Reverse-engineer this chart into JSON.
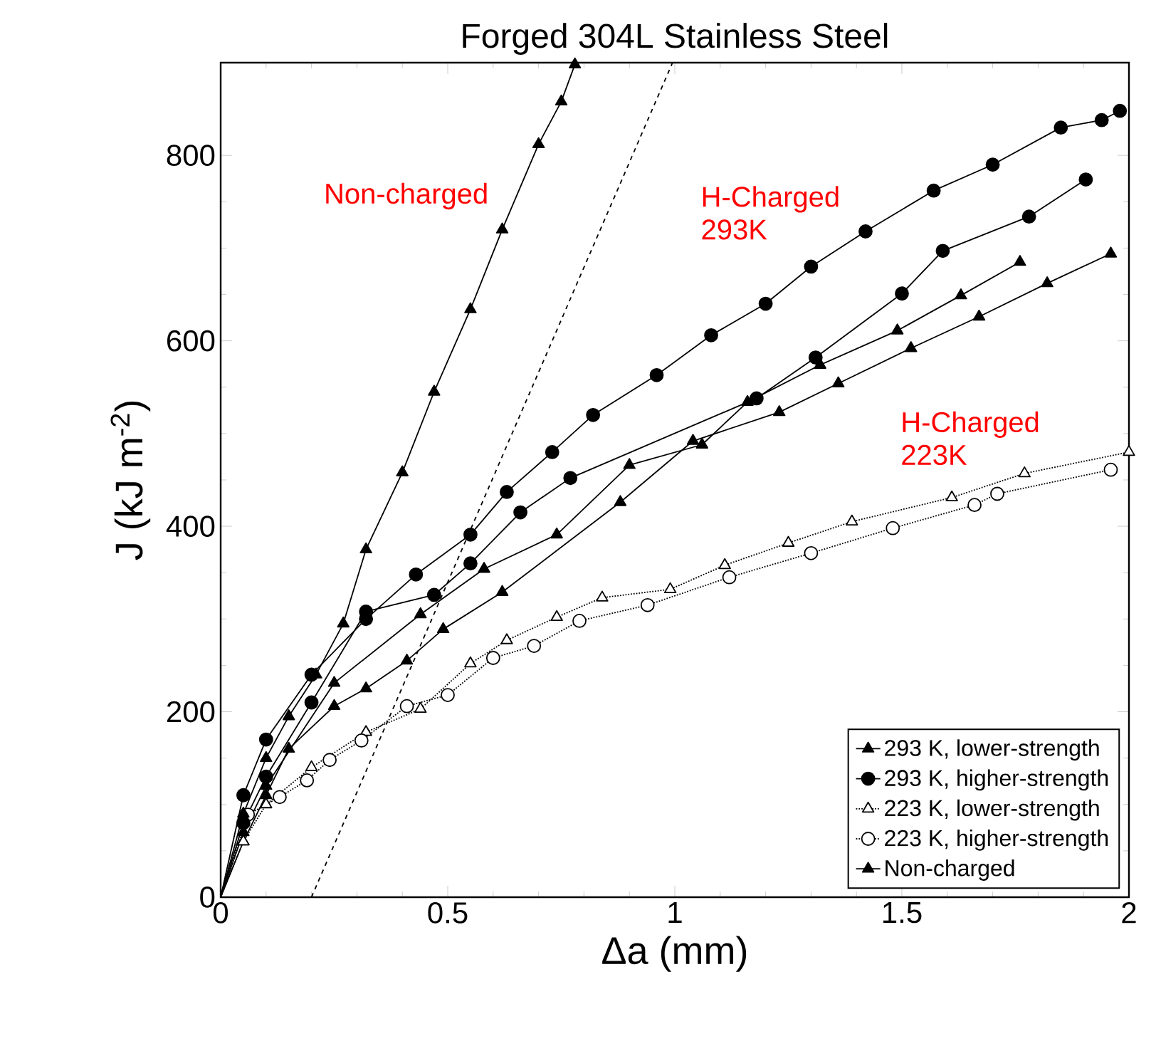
{
  "chart_data": {
    "type": "line",
    "title": "Forged 304L Stainless Steel",
    "xlabel": "Δa (mm)",
    "ylabel": "J (kJ m$^{-2}$)",
    "xlim": [
      0,
      2
    ],
    "ylim": [
      0,
      900
    ],
    "xticks": [
      0,
      0.5,
      1,
      1.5,
      2
    ],
    "yticks": [
      0,
      200,
      400,
      600,
      800
    ],
    "legend": "bottom right",
    "grid": false,
    "annotations": [
      "Non-charged",
      "H-Charged 293K",
      "H-Charged 223K"
    ],
    "series": [
      {
        "name": "293 K, lower-strength",
        "color": "#000000",
        "marker": "triangle",
        "line_style": "solid",
        "x": [
          0,
          0.05,
          0.1,
          0.15,
          0.25,
          0.32,
          0.41,
          0.49,
          0.62,
          0.88,
          1.04,
          1.23,
          1.36,
          1.52,
          1.67,
          1.82,
          1.96
        ],
        "values": [
          0,
          60,
          110,
          160,
          206,
          225,
          255,
          289,
          329,
          426,
          492,
          523,
          554,
          592,
          626,
          662,
          694
        ]
      },
      {
        "name": "293 K, higher-strength",
        "color": "#000000",
        "marker": "circle",
        "line_style": "solid",
        "x": [
          0,
          0.05,
          0.1,
          0.2,
          0.32,
          0.43,
          0.55,
          0.63,
          0.73,
          0.82,
          0.96,
          1.08,
          1.2,
          1.3,
          1.42,
          1.57,
          1.7,
          1.85,
          1.94,
          1.98
        ],
        "values": [
          0,
          110,
          170,
          240,
          300,
          348,
          391,
          437,
          480,
          520,
          563,
          606,
          640,
          680,
          718,
          762,
          790,
          830,
          838,
          848
        ]
      },
      {
        "name": "223 K, lower-strength",
        "color": "#000000",
        "marker": "triangle",
        "line_style": "dotted",
        "x": [
          0,
          0.05,
          0.1,
          0.2,
          0.32,
          0.44,
          0.55,
          0.63,
          0.74,
          0.84,
          0.99,
          1.11,
          1.25,
          1.39,
          1.61,
          1.77,
          2.0
        ],
        "values": [
          0,
          60,
          100,
          140,
          178,
          203,
          252,
          277,
          302,
          323,
          332,
          358,
          382,
          405,
          431,
          457,
          480
        ]
      },
      {
        "name": "223 K, higher-strength",
        "color": "#000000",
        "marker": "circle",
        "line_style": "dotted",
        "x": [
          0,
          0.06,
          0.13,
          0.19,
          0.24,
          0.31,
          0.41,
          0.5,
          0.6,
          0.69,
          0.79,
          0.94,
          1.12,
          1.3,
          1.48,
          1.66,
          1.71,
          1.96
        ],
        "values": [
          0,
          89,
          108,
          126,
          148,
          169,
          206,
          218,
          258,
          271,
          298,
          315,
          345,
          371,
          398,
          423,
          435,
          461
        ]
      },
      {
        "name": "Non-charged",
        "color": "#000000",
        "marker": "triangle",
        "line_style": "solid",
        "x": [
          0,
          0.05,
          0.1,
          0.15,
          0.21,
          0.27,
          0.32,
          0.4,
          0.47,
          0.55,
          0.62,
          0.7,
          0.75,
          0.78
        ],
        "values": [
          0,
          90,
          150,
          195,
          240,
          295,
          375,
          458,
          545,
          634,
          720,
          812,
          858,
          898
        ]
      },
      {
        "color": "#000000",
        "marker": "triangle",
        "line_style": "solid",
        "x": [
          0,
          0.05,
          0.1,
          0.25,
          0.44,
          0.58,
          0.74,
          0.9,
          1.06,
          1.16,
          1.32,
          1.49,
          1.63,
          1.76
        ],
        "values": [
          0,
          70,
          120,
          231,
          305,
          354,
          391,
          466,
          488,
          534,
          574,
          611,
          649,
          685
        ]
      },
      {
        "color": "#000000",
        "marker": "circle",
        "line_style": "solid",
        "x": [
          0,
          0.05,
          0.1,
          0.2,
          0.32,
          0.47,
          0.55,
          0.66,
          0.77,
          1.18,
          1.31,
          1.5,
          1.59,
          1.78,
          1.905
        ],
        "values": [
          0,
          80,
          130,
          210,
          308,
          326,
          360,
          415,
          452,
          538,
          582,
          651,
          697,
          734,
          774
        ]
      },
      {
        "color": "#000000",
        "marker": "none",
        "line_style": "dashed",
        "x": [
          0.2,
          0.995
        ],
        "values": [
          0,
          900
        ]
      }
    ]
  }
}
